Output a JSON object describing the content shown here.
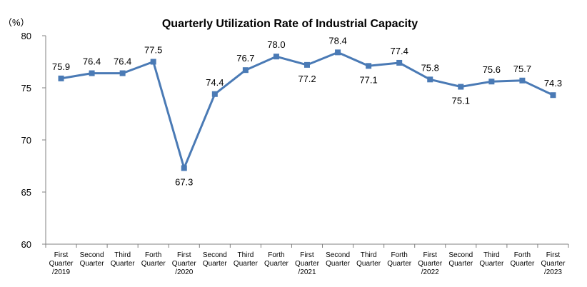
{
  "chart_data": {
    "type": "line",
    "title": "Quarterly Utilization Rate of Industrial Capacity",
    "unit_label": "（%）",
    "ylim": [
      60,
      80
    ],
    "yticks": [
      60,
      65,
      70,
      75,
      80
    ],
    "grid": false,
    "categories": [
      [
        "First",
        "Quarter",
        "/2019"
      ],
      [
        "Second",
        "Quarter"
      ],
      [
        "Third",
        "Quarter"
      ],
      [
        "Forth",
        "Quarter"
      ],
      [
        "First",
        "Quarter",
        "/2020"
      ],
      [
        "Second",
        "Quarter"
      ],
      [
        "Third",
        "Quarter"
      ],
      [
        "Forth",
        "Quarter"
      ],
      [
        "First",
        "Quarter",
        "/2021"
      ],
      [
        "Second",
        "Quarter"
      ],
      [
        "Third",
        "Quarter"
      ],
      [
        "Forth",
        "Quarter"
      ],
      [
        "First",
        "Quarter",
        "/2022"
      ],
      [
        "Second",
        "Quarter"
      ],
      [
        "Third",
        "Quarter"
      ],
      [
        "Forth",
        "Quarter"
      ],
      [
        "First",
        "Quarter",
        "/2023"
      ]
    ],
    "series": [
      {
        "values": [
          75.9,
          76.4,
          76.4,
          77.5,
          67.3,
          74.4,
          76.7,
          78.0,
          77.2,
          78.4,
          77.1,
          77.4,
          75.8,
          75.1,
          75.6,
          75.7,
          74.3
        ],
        "labels": [
          "75.9",
          "76.4",
          "76.4",
          "77.5",
          "67.3",
          "74.4",
          "76.7",
          "78.0",
          "77.2",
          "78.4",
          "77.1",
          "77.4",
          "75.8",
          "75.1",
          "75.6",
          "75.7",
          "74.3"
        ],
        "color": "#4a7ab5"
      }
    ]
  }
}
